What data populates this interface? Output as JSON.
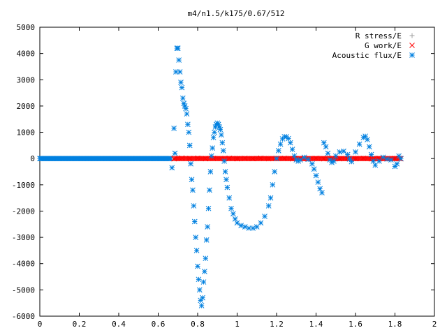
{
  "chart_data": {
    "type": "scatter",
    "title": "m4/n1.5/k175/0.67/512",
    "xlabel": "",
    "ylabel": "",
    "xlim": [
      0,
      2
    ],
    "ylim": [
      -6000,
      5000
    ],
    "xticks": [
      "0",
      "0.2",
      "0.4",
      "0.6",
      "0.8",
      "1",
      "1.2",
      "1.4",
      "1.6",
      "1.8",
      "2"
    ],
    "yticks": [
      "-6000",
      "-5000",
      "-4000",
      "-3000",
      "-2000",
      "-1000",
      "0",
      "1000",
      "2000",
      "3000",
      "4000",
      "5000"
    ],
    "grid": false,
    "legend_position": "top-right",
    "series": [
      {
        "name": "R stress/E",
        "marker": "plus",
        "color": "#a0a0a0",
        "points": [
          [
            0.68,
            2
          ],
          [
            0.75,
            3
          ],
          [
            0.82,
            2
          ],
          [
            0.9,
            4
          ],
          [
            1.0,
            3
          ],
          [
            1.1,
            2
          ],
          [
            1.2,
            4
          ],
          [
            1.3,
            3
          ],
          [
            1.4,
            2
          ],
          [
            1.5,
            3
          ],
          [
            1.6,
            2
          ],
          [
            1.7,
            3
          ],
          [
            1.8,
            2
          ]
        ]
      },
      {
        "name": "G work/E",
        "marker": "cross",
        "color": "#ff0000",
        "points": [
          [
            0.68,
            -10
          ],
          [
            0.72,
            20
          ],
          [
            0.76,
            5
          ],
          [
            0.8,
            15
          ],
          [
            0.84,
            -5
          ],
          [
            0.88,
            10
          ],
          [
            0.92,
            0
          ],
          [
            0.96,
            12
          ],
          [
            1.0,
            -8
          ],
          [
            1.04,
            6
          ],
          [
            1.08,
            -4
          ],
          [
            1.12,
            14
          ],
          [
            1.16,
            -6
          ],
          [
            1.2,
            8
          ],
          [
            1.24,
            10
          ],
          [
            1.28,
            -12
          ],
          [
            1.32,
            8
          ],
          [
            1.36,
            -20
          ],
          [
            1.4,
            12
          ],
          [
            1.44,
            -10
          ],
          [
            1.48,
            6
          ],
          [
            1.52,
            -8
          ],
          [
            1.56,
            10
          ],
          [
            1.6,
            -6
          ],
          [
            1.64,
            8
          ],
          [
            1.68,
            -14
          ],
          [
            1.72,
            6
          ],
          [
            1.76,
            -10
          ],
          [
            1.8,
            4
          ],
          [
            1.83,
            -8
          ]
        ]
      },
      {
        "name": "Acoustic flux/E",
        "marker": "star",
        "color": "#0080e0",
        "points": [
          [
            0.67,
            -350
          ],
          [
            0.68,
            1150
          ],
          [
            0.685,
            200
          ],
          [
            0.69,
            3300
          ],
          [
            0.695,
            4200
          ],
          [
            0.7,
            4200
          ],
          [
            0.705,
            3750
          ],
          [
            0.71,
            3300
          ],
          [
            0.715,
            2900
          ],
          [
            0.72,
            2700
          ],
          [
            0.725,
            2300
          ],
          [
            0.73,
            2100
          ],
          [
            0.735,
            2000
          ],
          [
            0.74,
            1900
          ],
          [
            0.745,
            1700
          ],
          [
            0.75,
            1300
          ],
          [
            0.755,
            1000
          ],
          [
            0.76,
            500
          ],
          [
            0.765,
            -200
          ],
          [
            0.77,
            -800
          ],
          [
            0.775,
            -1200
          ],
          [
            0.78,
            -1800
          ],
          [
            0.785,
            -2400
          ],
          [
            0.79,
            -3000
          ],
          [
            0.795,
            -3500
          ],
          [
            0.8,
            -4100
          ],
          [
            0.805,
            -4600
          ],
          [
            0.81,
            -5000
          ],
          [
            0.815,
            -5400
          ],
          [
            0.82,
            -5600
          ],
          [
            0.825,
            -5300
          ],
          [
            0.83,
            -4700
          ],
          [
            0.835,
            -4300
          ],
          [
            0.84,
            -3800
          ],
          [
            0.845,
            -3100
          ],
          [
            0.85,
            -2600
          ],
          [
            0.855,
            -1900
          ],
          [
            0.86,
            -1200
          ],
          [
            0.865,
            -500
          ],
          [
            0.87,
            100
          ],
          [
            0.875,
            400
          ],
          [
            0.88,
            800
          ],
          [
            0.885,
            1000
          ],
          [
            0.89,
            1200
          ],
          [
            0.895,
            1300
          ],
          [
            0.9,
            1350
          ],
          [
            0.905,
            1300
          ],
          [
            0.91,
            1200
          ],
          [
            0.915,
            1100
          ],
          [
            0.92,
            900
          ],
          [
            0.925,
            600
          ],
          [
            0.93,
            300
          ],
          [
            0.935,
            -100
          ],
          [
            0.94,
            -500
          ],
          [
            0.945,
            -800
          ],
          [
            0.95,
            -1100
          ],
          [
            0.96,
            -1500
          ],
          [
            0.97,
            -1900
          ],
          [
            0.98,
            -2100
          ],
          [
            0.99,
            -2300
          ],
          [
            1.0,
            -2450
          ],
          [
            1.02,
            -2550
          ],
          [
            1.04,
            -2600
          ],
          [
            1.06,
            -2650
          ],
          [
            1.08,
            -2650
          ],
          [
            1.1,
            -2600
          ],
          [
            1.12,
            -2450
          ],
          [
            1.14,
            -2200
          ],
          [
            1.16,
            -1800
          ],
          [
            1.17,
            -1500
          ],
          [
            1.18,
            -1000
          ],
          [
            1.19,
            -500
          ],
          [
            1.2,
            0
          ],
          [
            1.21,
            300
          ],
          [
            1.22,
            550
          ],
          [
            1.23,
            750
          ],
          [
            1.24,
            830
          ],
          [
            1.25,
            830
          ],
          [
            1.26,
            760
          ],
          [
            1.27,
            600
          ],
          [
            1.28,
            350
          ],
          [
            1.29,
            100
          ],
          [
            1.3,
            -50
          ],
          [
            1.31,
            -100
          ],
          [
            1.32,
            -50
          ],
          [
            1.34,
            50
          ],
          [
            1.36,
            -30
          ],
          [
            1.38,
            -200
          ],
          [
            1.39,
            -400
          ],
          [
            1.4,
            -650
          ],
          [
            1.41,
            -900
          ],
          [
            1.42,
            -1150
          ],
          [
            1.43,
            -1300
          ],
          [
            1.44,
            600
          ],
          [
            1.45,
            450
          ],
          [
            1.46,
            200
          ],
          [
            1.47,
            -50
          ],
          [
            1.48,
            -150
          ],
          [
            1.49,
            -100
          ],
          [
            1.5,
            100
          ],
          [
            1.52,
            250
          ],
          [
            1.54,
            280
          ],
          [
            1.56,
            150
          ],
          [
            1.57,
            -20
          ],
          [
            1.58,
            -120
          ],
          [
            1.6,
            250
          ],
          [
            1.62,
            550
          ],
          [
            1.64,
            800
          ],
          [
            1.65,
            850
          ],
          [
            1.66,
            720
          ],
          [
            1.67,
            450
          ],
          [
            1.68,
            150
          ],
          [
            1.69,
            -100
          ],
          [
            1.7,
            -250
          ],
          [
            1.72,
            -100
          ],
          [
            1.74,
            50
          ],
          [
            1.76,
            -20
          ],
          [
            1.78,
            -50
          ],
          [
            1.8,
            -300
          ],
          [
            1.81,
            -200
          ],
          [
            1.82,
            100
          ],
          [
            1.83,
            0
          ]
        ]
      }
    ]
  }
}
